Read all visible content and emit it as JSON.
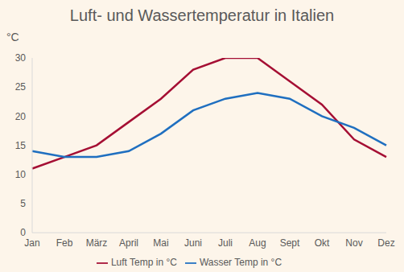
{
  "chart_data": {
    "type": "line",
    "title": "Luft- und Wassertemperatur in Italien",
    "y_label": "°C",
    "categories": [
      "Jan",
      "Feb",
      "März",
      "April",
      "Mai",
      "Juni",
      "Juli",
      "Aug",
      "Sept",
      "Okt",
      "Nov",
      "Dez"
    ],
    "series": [
      {
        "name": "Luft Temp in °C",
        "color": "#a50f34",
        "values": [
          11,
          13,
          15,
          19,
          23,
          28,
          30,
          30,
          26,
          22,
          16,
          13
        ]
      },
      {
        "name": "Wasser Temp in °C",
        "color": "#1f6fc0",
        "values": [
          14,
          13,
          13,
          14,
          17,
          21,
          23,
          24,
          23,
          20,
          18,
          15
        ]
      }
    ],
    "ylim": [
      0,
      30
    ],
    "yticks": [
      0,
      5,
      10,
      15,
      20,
      25,
      30
    ],
    "grid": false,
    "legend": "bottom"
  }
}
